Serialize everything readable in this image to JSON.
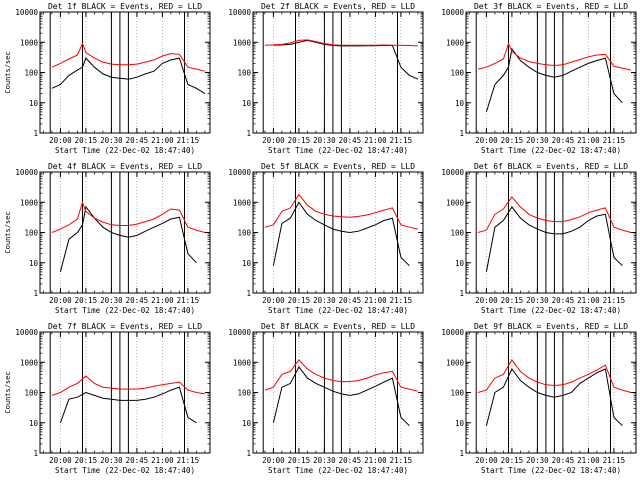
{
  "page": {
    "background": "#ffffff",
    "axis_color": "#000000"
  },
  "chart_data": [
    {
      "type": "line",
      "title": "Det 1f BLACK = Events, RED = LLD",
      "xlabel": "Start Time (22-Dec-02 18:47:40)",
      "ylabel": "Counts/sec",
      "ylim": [
        1,
        10000
      ],
      "yscale": "log",
      "xticks": [
        "20:00",
        "20:15",
        "20:30",
        "20:45",
        "21:00",
        "21:15"
      ],
      "yticks": [
        "1",
        "10",
        "100",
        "1000",
        "10000"
      ],
      "marker_lines": [
        "20:30",
        "20:35",
        "20:40"
      ],
      "series": [
        {
          "color": "#000000",
          "x": [
            "19:55",
            "20:00",
            "20:05",
            "20:10",
            "20:13",
            "20:15",
            "20:20",
            "20:25",
            "20:30",
            "20:35",
            "20:40",
            "20:45",
            "20:50",
            "20:55",
            "21:00",
            "21:05",
            "21:10",
            "21:15",
            "21:20",
            "21:25"
          ],
          "values": [
            30,
            40,
            80,
            120,
            150,
            300,
            150,
            90,
            70,
            65,
            60,
            70,
            90,
            110,
            200,
            260,
            300,
            40,
            30,
            20
          ]
        },
        {
          "color": "#ff0000",
          "x": [
            "19:55",
            "20:00",
            "20:05",
            "20:10",
            "20:13",
            "20:15",
            "20:20",
            "20:25",
            "20:30",
            "20:35",
            "20:40",
            "20:45",
            "20:50",
            "20:55",
            "21:00",
            "21:05",
            "21:10",
            "21:15",
            "21:20",
            "21:25"
          ],
          "values": [
            150,
            200,
            280,
            380,
            900,
            450,
            300,
            220,
            190,
            180,
            180,
            190,
            220,
            260,
            350,
            420,
            400,
            150,
            130,
            110
          ]
        }
      ]
    },
    {
      "type": "line",
      "title": "Det 2f BLACK = Events, RED = LLD",
      "xlabel": "Start Time (22-Dec-02 18:47:40)",
      "ylabel": "",
      "ylim": [
        1,
        10000
      ],
      "yscale": "log",
      "xticks": [
        "20:00",
        "20:15",
        "20:30",
        "20:45",
        "21:00",
        "21:15"
      ],
      "yticks": [
        "1",
        "10",
        "100",
        "1000",
        "10000"
      ],
      "marker_lines": [
        "20:30",
        "20:35",
        "20:40"
      ],
      "series": [
        {
          "color": "#000000",
          "x": [
            "20:00",
            "20:05",
            "20:10",
            "20:15",
            "20:20",
            "20:25",
            "20:30",
            "20:35",
            "20:40",
            "20:45",
            "20:50",
            "20:55",
            "21:00",
            "21:05",
            "21:10",
            "21:15",
            "21:20",
            "21:25"
          ],
          "values": [
            800,
            820,
            850,
            1000,
            1150,
            1000,
            850,
            780,
            760,
            760,
            760,
            770,
            770,
            780,
            780,
            150,
            80,
            60
          ]
        },
        {
          "color": "#ff0000",
          "x": [
            "19:55",
            "20:00",
            "20:05",
            "20:10",
            "20:15",
            "20:20",
            "20:25",
            "20:30",
            "20:35",
            "20:40",
            "20:45",
            "20:50",
            "20:55",
            "21:00",
            "21:05",
            "21:10",
            "21:15",
            "21:20",
            "21:25"
          ],
          "values": [
            800,
            820,
            850,
            950,
            1150,
            1200,
            1050,
            900,
            820,
            800,
            800,
            800,
            800,
            800,
            810,
            800,
            790,
            780,
            760
          ]
        }
      ]
    },
    {
      "type": "line",
      "title": "Det 3f BLACK = Events, RED = LLD",
      "xlabel": "Start Time (22-Dec-02 18:47:40)",
      "ylabel": "",
      "ylim": [
        1,
        10000
      ],
      "yscale": "log",
      "xticks": [
        "20:00",
        "20:15",
        "20:30",
        "20:45",
        "21:00",
        "21:15"
      ],
      "yticks": [
        "1",
        "10",
        "100",
        "1000",
        "10000"
      ],
      "marker_lines": [
        "20:30",
        "20:35",
        "20:40",
        "20:45"
      ],
      "series": [
        {
          "color": "#000000",
          "x": [
            "20:00",
            "20:05",
            "20:10",
            "20:13",
            "20:15",
            "20:20",
            "20:25",
            "20:30",
            "20:35",
            "20:40",
            "20:45",
            "20:50",
            "20:55",
            "21:00",
            "21:05",
            "21:10",
            "21:15",
            "21:20"
          ],
          "values": [
            5,
            40,
            80,
            150,
            600,
            250,
            150,
            100,
            80,
            70,
            80,
            110,
            150,
            200,
            250,
            300,
            20,
            10
          ]
        },
        {
          "color": "#ff0000",
          "x": [
            "19:55",
            "20:00",
            "20:05",
            "20:10",
            "20:13",
            "20:15",
            "20:20",
            "20:25",
            "20:30",
            "20:35",
            "20:40",
            "20:45",
            "20:50",
            "20:55",
            "21:00",
            "21:05",
            "21:10",
            "21:15",
            "21:20",
            "21:25"
          ],
          "values": [
            130,
            150,
            200,
            280,
            900,
            500,
            300,
            230,
            200,
            180,
            170,
            180,
            220,
            270,
            330,
            380,
            400,
            160,
            140,
            120
          ]
        }
      ]
    },
    {
      "type": "line",
      "title": "Det 4f BLACK = Events, RED = LLD",
      "xlabel": "Start Time (22-Dec-02 18:47:40)",
      "ylabel": "Counts/sec",
      "ylim": [
        1,
        10000
      ],
      "yscale": "log",
      "xticks": [
        "20:00",
        "20:15",
        "20:30",
        "20:45",
        "21:00",
        "21:15"
      ],
      "yticks": [
        "1",
        "10",
        "100",
        "1000",
        "10000"
      ],
      "marker_lines": [
        "20:30",
        "20:35",
        "20:40"
      ],
      "series": [
        {
          "color": "#000000",
          "x": [
            "20:00",
            "20:05",
            "20:10",
            "20:13",
            "20:15",
            "20:20",
            "20:25",
            "20:30",
            "20:35",
            "20:40",
            "20:45",
            "20:50",
            "20:55",
            "21:00",
            "21:05",
            "21:10",
            "21:15",
            "21:20"
          ],
          "values": [
            5,
            60,
            100,
            180,
            700,
            300,
            150,
            100,
            80,
            70,
            80,
            110,
            150,
            200,
            280,
            320,
            20,
            10
          ]
        },
        {
          "color": "#ff0000",
          "x": [
            "19:55",
            "20:00",
            "20:05",
            "20:10",
            "20:13",
            "20:15",
            "20:20",
            "20:25",
            "20:30",
            "20:35",
            "20:40",
            "20:45",
            "20:50",
            "20:55",
            "21:00",
            "21:05",
            "21:10",
            "21:15",
            "21:20",
            "21:25"
          ],
          "values": [
            100,
            130,
            180,
            280,
            1000,
            500,
            300,
            220,
            180,
            170,
            170,
            190,
            230,
            280,
            400,
            600,
            550,
            150,
            120,
            100
          ]
        }
      ]
    },
    {
      "type": "line",
      "title": "Det 5f BLACK = Events, RED = LLD",
      "xlabel": "Start Time (22-Dec-02 18:47:40)",
      "ylabel": "",
      "ylim": [
        1,
        10000
      ],
      "yscale": "log",
      "xticks": [
        "20:00",
        "20:15",
        "20:30",
        "20:45",
        "21:00",
        "21:15"
      ],
      "yticks": [
        "1",
        "10",
        "100",
        "1000",
        "10000"
      ],
      "marker_lines": [
        "20:30",
        "20:35",
        "20:40"
      ],
      "series": [
        {
          "color": "#000000",
          "x": [
            "20:00",
            "20:05",
            "20:10",
            "20:15",
            "20:20",
            "20:25",
            "20:30",
            "20:35",
            "20:40",
            "20:45",
            "20:50",
            "20:55",
            "21:00",
            "21:05",
            "21:10",
            "21:15",
            "21:20"
          ],
          "values": [
            8,
            200,
            300,
            1000,
            400,
            250,
            180,
            130,
            110,
            100,
            110,
            140,
            180,
            250,
            300,
            15,
            8
          ]
        },
        {
          "color": "#ff0000",
          "x": [
            "19:55",
            "20:00",
            "20:05",
            "20:10",
            "20:15",
            "20:20",
            "20:25",
            "20:30",
            "20:35",
            "20:40",
            "20:45",
            "20:50",
            "20:55",
            "21:00",
            "21:05",
            "21:10",
            "21:15",
            "21:20",
            "21:25"
          ],
          "values": [
            150,
            180,
            500,
            650,
            1800,
            800,
            500,
            400,
            350,
            330,
            320,
            340,
            380,
            450,
            550,
            650,
            180,
            150,
            130
          ]
        }
      ]
    },
    {
      "type": "line",
      "title": "Det 6f BLACK = Events, RED = LLD",
      "xlabel": "Start Time (22-Dec-02 18:47:40)",
      "ylabel": "",
      "ylim": [
        1,
        10000
      ],
      "yscale": "log",
      "xticks": [
        "20:00",
        "20:15",
        "20:30",
        "20:45",
        "21:00",
        "21:15"
      ],
      "yticks": [
        "1",
        "10",
        "100",
        "1000",
        "10000"
      ],
      "marker_lines": [
        "20:30",
        "20:35",
        "20:40",
        "20:45"
      ],
      "series": [
        {
          "color": "#000000",
          "x": [
            "20:00",
            "20:05",
            "20:10",
            "20:15",
            "20:20",
            "20:25",
            "20:30",
            "20:35",
            "20:40",
            "20:45",
            "20:50",
            "20:55",
            "21:00",
            "21:05",
            "21:10",
            "21:15",
            "21:20"
          ],
          "values": [
            5,
            150,
            250,
            700,
            300,
            180,
            130,
            100,
            90,
            90,
            110,
            150,
            250,
            350,
            400,
            15,
            8
          ]
        },
        {
          "color": "#ff0000",
          "x": [
            "19:55",
            "20:00",
            "20:05",
            "20:10",
            "20:15",
            "20:20",
            "20:25",
            "20:30",
            "20:35",
            "20:40",
            "20:45",
            "20:50",
            "20:55",
            "21:00",
            "21:05",
            "21:10",
            "21:15",
            "21:20",
            "21:25"
          ],
          "values": [
            100,
            120,
            400,
            600,
            1500,
            700,
            400,
            300,
            250,
            230,
            230,
            270,
            330,
            450,
            550,
            650,
            150,
            120,
            100
          ]
        }
      ]
    },
    {
      "type": "line",
      "title": "Det 7f BLACK = Events, RED = LLD",
      "xlabel": "Start Time (22-Dec-02 18:47:40)",
      "ylabel": "Counts/sec",
      "ylim": [
        1,
        10000
      ],
      "yscale": "log",
      "xticks": [
        "20:00",
        "20:15",
        "20:30",
        "20:45",
        "21:00",
        "21:15"
      ],
      "yticks": [
        "1",
        "10",
        "100",
        "1000",
        "10000"
      ],
      "marker_lines": [
        "20:30",
        "20:35",
        "20:40"
      ],
      "series": [
        {
          "color": "#000000",
          "x": [
            "20:00",
            "20:05",
            "20:10",
            "20:15",
            "20:20",
            "20:25",
            "20:30",
            "20:35",
            "20:40",
            "20:45",
            "20:50",
            "20:55",
            "21:00",
            "21:05",
            "21:10",
            "21:15",
            "21:20"
          ],
          "values": [
            10,
            60,
            70,
            100,
            80,
            65,
            60,
            55,
            55,
            55,
            60,
            70,
            90,
            120,
            150,
            15,
            10
          ]
        },
        {
          "color": "#ff0000",
          "x": [
            "19:55",
            "20:00",
            "20:05",
            "20:10",
            "20:15",
            "20:20",
            "20:25",
            "20:30",
            "20:35",
            "20:40",
            "20:45",
            "20:50",
            "20:55",
            "21:00",
            "21:05",
            "21:10",
            "21:15",
            "21:20",
            "21:25"
          ],
          "values": [
            80,
            100,
            150,
            200,
            350,
            200,
            150,
            140,
            130,
            130,
            130,
            140,
            160,
            180,
            200,
            220,
            120,
            100,
            90
          ]
        }
      ]
    },
    {
      "type": "line",
      "title": "Det 8f BLACK = Events, RED = LLD",
      "xlabel": "Start Time (22-Dec-02 18:47:40)",
      "ylabel": "",
      "ylim": [
        1,
        10000
      ],
      "yscale": "log",
      "xticks": [
        "20:00",
        "20:15",
        "20:30",
        "20:45",
        "21:00",
        "21:15"
      ],
      "yticks": [
        "1",
        "10",
        "100",
        "1000",
        "10000"
      ],
      "marker_lines": [
        "20:30",
        "20:35",
        "20:40"
      ],
      "series": [
        {
          "color": "#000000",
          "x": [
            "20:00",
            "20:05",
            "20:10",
            "20:15",
            "20:20",
            "20:25",
            "20:30",
            "20:35",
            "20:40",
            "20:45",
            "20:50",
            "20:55",
            "21:00",
            "21:05",
            "21:10",
            "21:15",
            "21:20"
          ],
          "values": [
            10,
            150,
            200,
            700,
            300,
            200,
            150,
            110,
            90,
            80,
            90,
            120,
            160,
            220,
            300,
            15,
            8
          ]
        },
        {
          "color": "#ff0000",
          "x": [
            "19:55",
            "20:00",
            "20:05",
            "20:10",
            "20:15",
            "20:20",
            "20:25",
            "20:30",
            "20:35",
            "20:40",
            "20:45",
            "20:50",
            "20:55",
            "21:00",
            "21:05",
            "21:10",
            "21:15",
            "21:20",
            "21:25"
          ],
          "values": [
            120,
            150,
            400,
            500,
            1200,
            600,
            400,
            300,
            250,
            230,
            230,
            250,
            300,
            380,
            450,
            500,
            150,
            130,
            110
          ]
        }
      ]
    },
    {
      "type": "line",
      "title": "Det 9f BLACK = Events, RED = LLD",
      "xlabel": "Start Time (22-Dec-02 18:47:40)",
      "ylabel": "",
      "ylim": [
        1,
        10000
      ],
      "yscale": "log",
      "xticks": [
        "20:00",
        "20:15",
        "20:30",
        "20:45",
        "21:00",
        "21:15"
      ],
      "yticks": [
        "1",
        "10",
        "100",
        "1000",
        "10000"
      ],
      "marker_lines": [
        "20:30",
        "20:35",
        "20:40",
        "20:45"
      ],
      "series": [
        {
          "color": "#000000",
          "x": [
            "20:00",
            "20:05",
            "20:10",
            "20:15",
            "20:20",
            "20:25",
            "20:30",
            "20:35",
            "20:40",
            "20:45",
            "20:50",
            "20:55",
            "21:00",
            "21:05",
            "21:10",
            "21:15",
            "21:20"
          ],
          "values": [
            8,
            100,
            150,
            600,
            250,
            150,
            100,
            80,
            70,
            80,
            100,
            200,
            300,
            450,
            600,
            15,
            8
          ]
        },
        {
          "color": "#ff0000",
          "x": [
            "19:55",
            "20:00",
            "20:05",
            "20:10",
            "20:15",
            "20:20",
            "20:25",
            "20:30",
            "20:35",
            "20:40",
            "20:45",
            "20:50",
            "20:55",
            "21:00",
            "21:05",
            "21:10",
            "21:15",
            "21:20",
            "21:25"
          ],
          "values": [
            100,
            120,
            300,
            400,
            1200,
            500,
            300,
            220,
            180,
            170,
            180,
            220,
            300,
            400,
            550,
            800,
            150,
            120,
            100
          ]
        }
      ]
    }
  ]
}
